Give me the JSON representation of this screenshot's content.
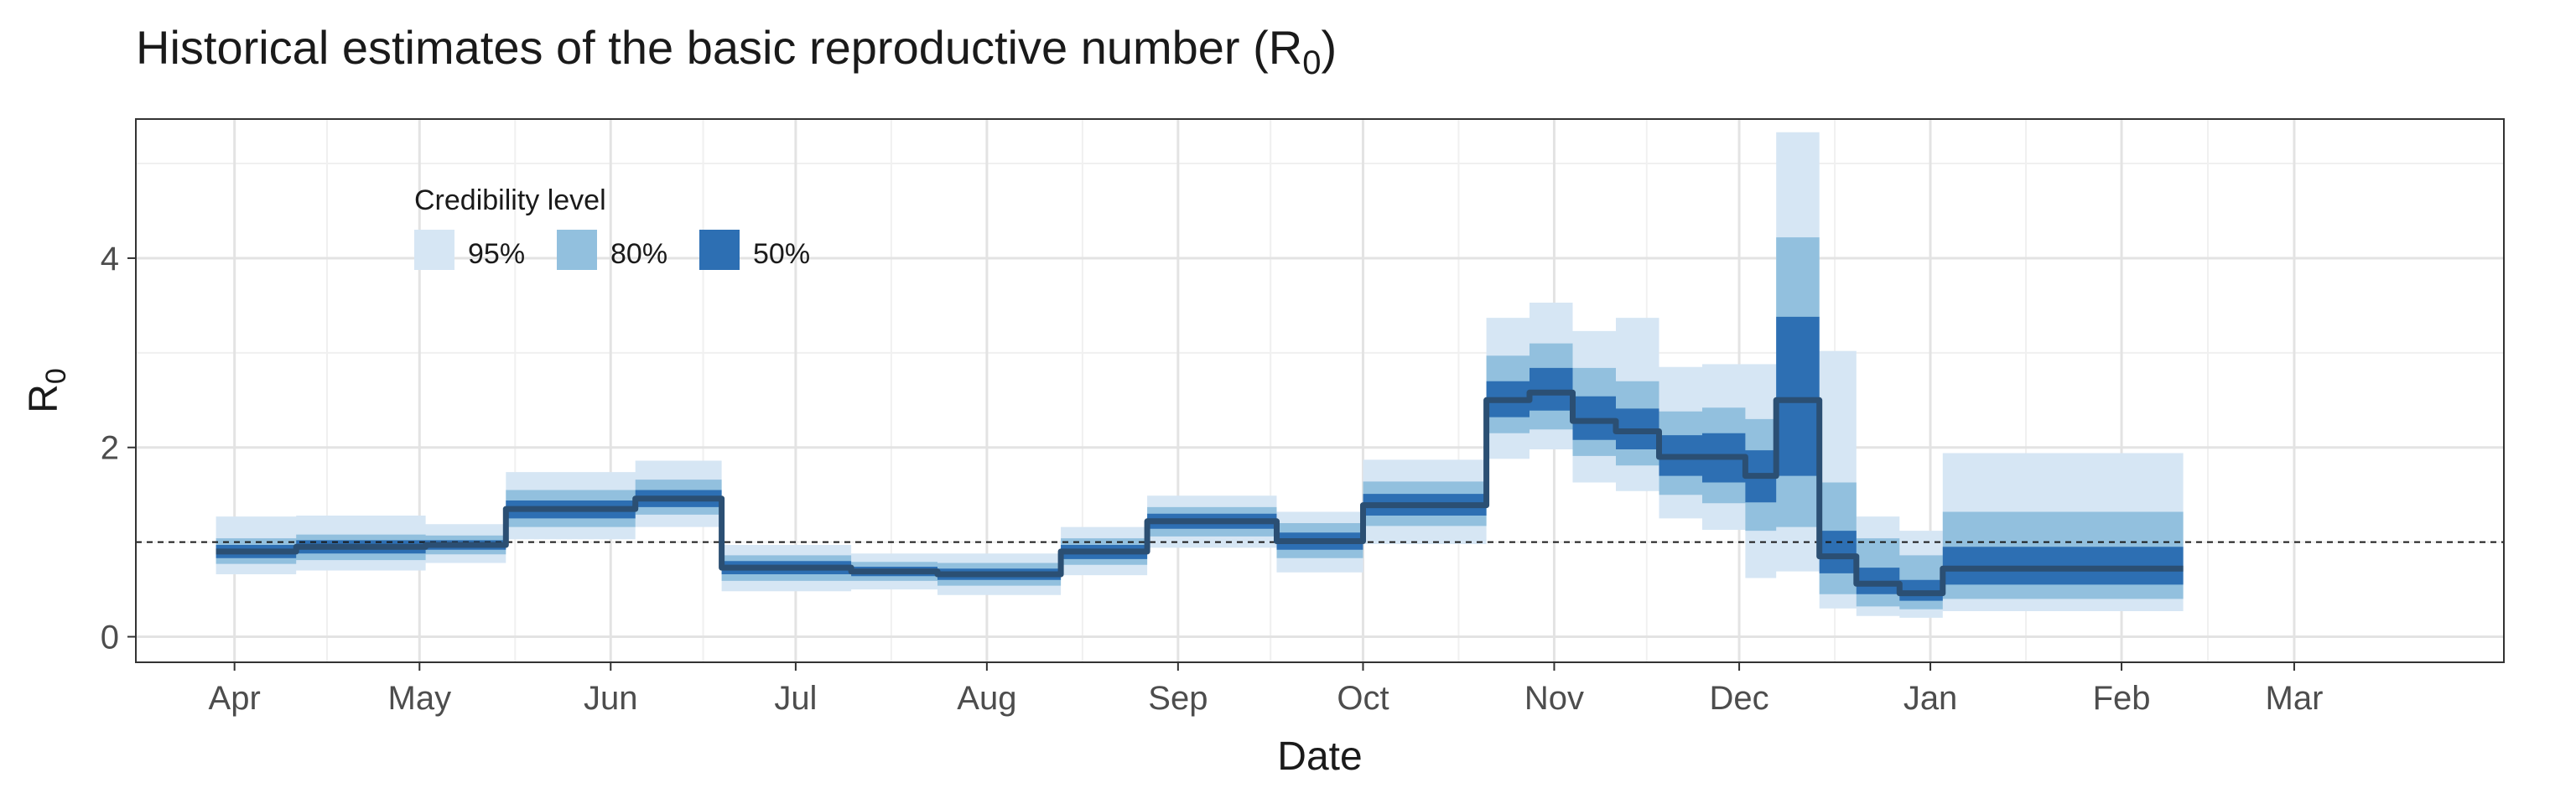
{
  "chart_data": {
    "type": "area",
    "title": "Historical estimates of the basic reproductive number (R",
    "title_subscript": "0",
    "title_suffix": ")",
    "xlabel": "Date",
    "ylabel": "R",
    "ylabel_subscript": "0",
    "x_tick_labels": [
      "Apr",
      "May",
      "Jun",
      "Jul",
      "Aug",
      "Sep",
      "Oct",
      "Nov",
      "Dec",
      "Jan",
      "Feb",
      "Mar"
    ],
    "y_ticks": [
      0,
      2,
      4
    ],
    "ylim": [
      -0.27,
      5.47
    ],
    "xlim_days": [
      -16,
      368
    ],
    "x_axis_note": "x values are days after Apr 1 (Apr 1 = 0); month ticks at month starts",
    "month_tick_days": [
      0,
      30,
      61,
      91,
      122,
      153,
      183,
      214,
      244,
      275,
      306,
      334
    ],
    "reference_line": {
      "y": 1,
      "style": "dashed"
    },
    "grid": true,
    "legend": {
      "title": "Credibility level",
      "position": "top-left inside",
      "items": [
        {
          "label": "95%",
          "color": "#d6e6f4"
        },
        {
          "label": "80%",
          "color": "#92c0de"
        },
        {
          "label": "50%",
          "color": "#2d6fb3"
        }
      ]
    },
    "median_color": "#2b4f73",
    "segments": [
      {
        "x_start": -3,
        "x_end": 10,
        "median": 0.9,
        "ci50": [
          0.83,
          0.97
        ],
        "ci80": [
          0.77,
          1.04
        ],
        "ci95": [
          0.66,
          1.27
        ]
      },
      {
        "x_start": 10,
        "x_end": 31,
        "median": 0.95,
        "ci50": [
          0.88,
          1.02
        ],
        "ci80": [
          0.81,
          1.08
        ],
        "ci95": [
          0.7,
          1.28
        ]
      },
      {
        "x_start": 31,
        "x_end": 44,
        "median": 0.97,
        "ci50": [
          0.92,
          1.02
        ],
        "ci80": [
          0.87,
          1.07
        ],
        "ci95": [
          0.78,
          1.19
        ]
      },
      {
        "x_start": 44,
        "x_end": 65,
        "median": 1.35,
        "ci50": [
          1.25,
          1.44
        ],
        "ci80": [
          1.16,
          1.55
        ],
        "ci95": [
          1.03,
          1.74
        ]
      },
      {
        "x_start": 65,
        "x_end": 79,
        "median": 1.46,
        "ci50": [
          1.37,
          1.55
        ],
        "ci80": [
          1.29,
          1.66
        ],
        "ci95": [
          1.16,
          1.86
        ]
      },
      {
        "x_start": 79,
        "x_end": 100,
        "median": 0.73,
        "ci50": [
          0.66,
          0.8
        ],
        "ci80": [
          0.59,
          0.86
        ],
        "ci95": [
          0.48,
          0.97
        ]
      },
      {
        "x_start": 100,
        "x_end": 114,
        "median": 0.69,
        "ci50": [
          0.64,
          0.74
        ],
        "ci80": [
          0.59,
          0.79
        ],
        "ci95": [
          0.5,
          0.88
        ]
      },
      {
        "x_start": 114,
        "x_end": 134,
        "median": 0.66,
        "ci50": [
          0.6,
          0.72
        ],
        "ci80": [
          0.54,
          0.78
        ],
        "ci95": [
          0.44,
          0.88
        ]
      },
      {
        "x_start": 134,
        "x_end": 148,
        "median": 0.9,
        "ci50": [
          0.82,
          0.97
        ],
        "ci80": [
          0.76,
          1.04
        ],
        "ci95": [
          0.65,
          1.16
        ]
      },
      {
        "x_start": 148,
        "x_end": 169,
        "median": 1.22,
        "ci50": [
          1.14,
          1.3
        ],
        "ci80": [
          1.06,
          1.37
        ],
        "ci95": [
          0.94,
          1.49
        ]
      },
      {
        "x_start": 169,
        "x_end": 183,
        "median": 1.01,
        "ci50": [
          0.92,
          1.1
        ],
        "ci80": [
          0.83,
          1.2
        ],
        "ci95": [
          0.68,
          1.32
        ]
      },
      {
        "x_start": 183,
        "x_end": 203,
        "median": 1.39,
        "ci50": [
          1.28,
          1.51
        ],
        "ci80": [
          1.17,
          1.64
        ],
        "ci95": [
          0.98,
          1.87
        ]
      },
      {
        "x_start": 203,
        "x_end": 210,
        "median": 2.5,
        "ci50": [
          2.32,
          2.7
        ],
        "ci80": [
          2.15,
          2.97
        ],
        "ci95": [
          1.88,
          3.37
        ]
      },
      {
        "x_start": 210,
        "x_end": 217,
        "median": 2.58,
        "ci50": [
          2.39,
          2.84
        ],
        "ci80": [
          2.19,
          3.1
        ],
        "ci95": [
          1.98,
          3.53
        ]
      },
      {
        "x_start": 217,
        "x_end": 224,
        "median": 2.28,
        "ci50": [
          2.08,
          2.54
        ],
        "ci80": [
          1.91,
          2.84
        ],
        "ci95": [
          1.63,
          3.23
        ]
      },
      {
        "x_start": 224,
        "x_end": 231,
        "median": 2.17,
        "ci50": [
          1.98,
          2.41
        ],
        "ci80": [
          1.81,
          2.7
        ],
        "ci95": [
          1.54,
          3.37
        ]
      },
      {
        "x_start": 231,
        "x_end": 238,
        "median": 1.9,
        "ci50": [
          1.7,
          2.13
        ],
        "ci80": [
          1.5,
          2.38
        ],
        "ci95": [
          1.25,
          2.85
        ]
      },
      {
        "x_start": 238,
        "x_end": 245,
        "median": 1.9,
        "ci50": [
          1.63,
          2.15
        ],
        "ci80": [
          1.41,
          2.42
        ],
        "ci95": [
          1.13,
          2.88
        ]
      },
      {
        "x_start": 245,
        "x_end": 250,
        "median": 1.7,
        "ci50": [
          1.42,
          1.97
        ],
        "ci80": [
          1.12,
          2.3
        ],
        "ci95": [
          0.62,
          2.88
        ]
      },
      {
        "x_start": 250,
        "x_end": 257,
        "median": 2.5,
        "ci50": [
          1.7,
          3.38
        ],
        "ci80": [
          1.16,
          4.22
        ],
        "ci95": [
          0.69,
          5.33
        ]
      },
      {
        "x_start": 257,
        "x_end": 263,
        "median": 0.85,
        "ci50": [
          0.67,
          1.12
        ],
        "ci80": [
          0.45,
          1.63
        ],
        "ci95": [
          0.3,
          3.02
        ]
      },
      {
        "x_start": 263,
        "x_end": 270,
        "median": 0.56,
        "ci50": [
          0.45,
          0.73
        ],
        "ci80": [
          0.32,
          1.04
        ],
        "ci95": [
          0.22,
          1.27
        ]
      },
      {
        "x_start": 270,
        "x_end": 277,
        "median": 0.46,
        "ci50": [
          0.38,
          0.6
        ],
        "ci80": [
          0.29,
          0.86
        ],
        "ci95": [
          0.2,
          1.12
        ]
      },
      {
        "x_start": 277,
        "x_end": 316,
        "median": 0.72,
        "ci50": [
          0.55,
          0.95
        ],
        "ci80": [
          0.4,
          1.32
        ],
        "ci95": [
          0.27,
          1.94
        ]
      }
    ]
  }
}
